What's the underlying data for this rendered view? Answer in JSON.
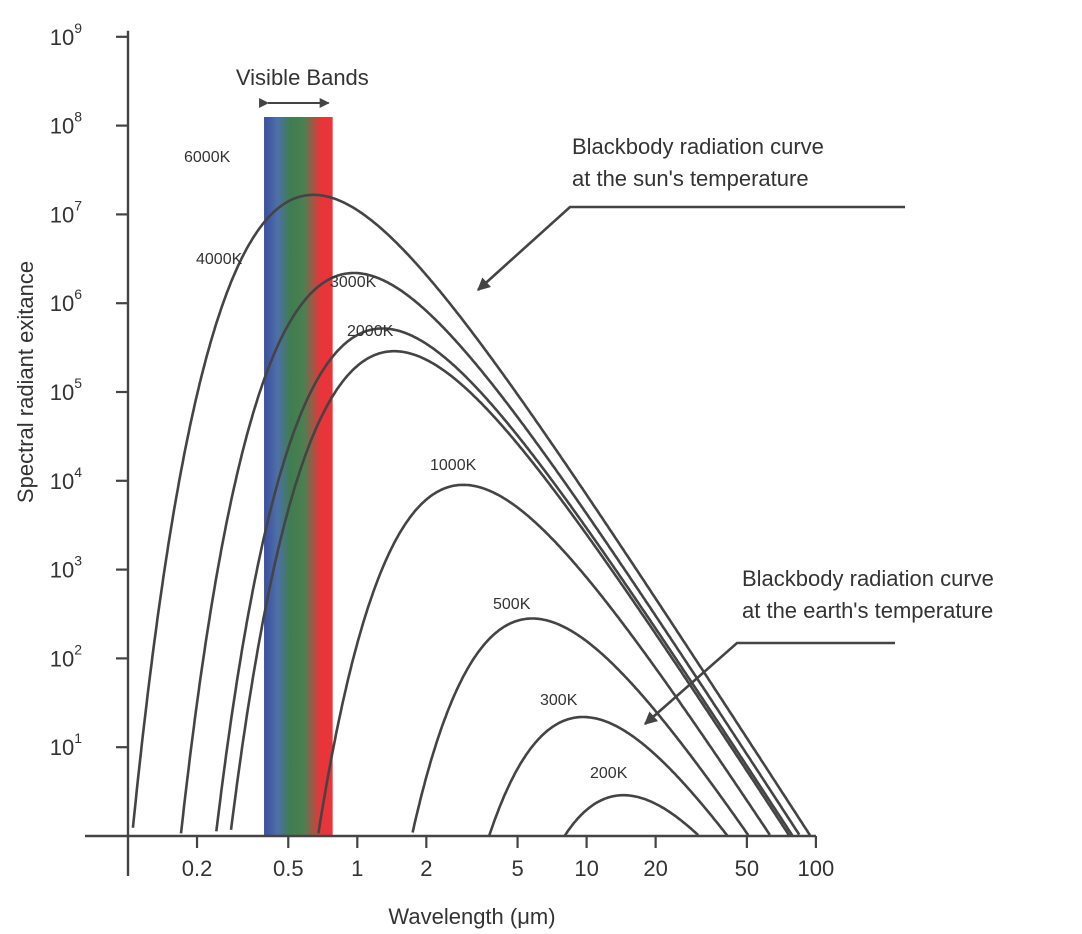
{
  "chart_data": {
    "type": "line",
    "xlabel": "Wavelength (μm)",
    "ylabel": "Spectral radiant exitance",
    "x_scale": "log",
    "y_scale": "log",
    "xlim": [
      0.1,
      100
    ],
    "ylim": [
      1,
      1000000000
    ],
    "x_ticks": [
      {
        "value": 0.2,
        "label": "0.2"
      },
      {
        "value": 0.5,
        "label": "0.5"
      },
      {
        "value": 1,
        "label": "1"
      },
      {
        "value": 2,
        "label": "2"
      },
      {
        "value": 5,
        "label": "5"
      },
      {
        "value": 10,
        "label": "10"
      },
      {
        "value": 20,
        "label": "20"
      },
      {
        "value": 50,
        "label": "50"
      },
      {
        "value": 100,
        "label": "100"
      }
    ],
    "y_ticks": [
      {
        "value": 10,
        "base": "10",
        "exp": "1"
      },
      {
        "value": 100,
        "base": "10",
        "exp": "2"
      },
      {
        "value": 1000,
        "base": "10",
        "exp": "3"
      },
      {
        "value": 10000,
        "base": "10",
        "exp": "4"
      },
      {
        "value": 100000,
        "base": "10",
        "exp": "5"
      },
      {
        "value": 1000000,
        "base": "10",
        "exp": "6"
      },
      {
        "value": 10000000,
        "base": "10",
        "exp": "7"
      },
      {
        "value": 100000000,
        "base": "10",
        "exp": "8"
      },
      {
        "value": 1000000000,
        "base": "10",
        "exp": "9"
      }
    ],
    "series": [
      {
        "name": "6000K",
        "temperature": 6000
      },
      {
        "name": "4000K",
        "temperature": 4000
      },
      {
        "name": "3000K",
        "temperature": 3000
      },
      {
        "name": "2000K",
        "temperature": 2000
      },
      {
        "name": "1000K",
        "temperature": 1000
      },
      {
        "name": "500K",
        "temperature": 500
      },
      {
        "name": "300K",
        "temperature": 300
      },
      {
        "name": "200K",
        "temperature": 200
      }
    ],
    "visible_band": {
      "label": "Visible Bands",
      "range": [
        0.4,
        0.75
      ],
      "colors": [
        "#3a4fa0",
        "#4e6fa8",
        "#3f7d4e",
        "#4d7f52",
        "#e8353a"
      ]
    },
    "annotations": [
      {
        "id": "sun",
        "lines": [
          "Blackbody radiation curve",
          "at the sun's temperature"
        ],
        "points_to": "6000K"
      },
      {
        "id": "earth",
        "lines": [
          "Blackbody radiation curve",
          "at the earth's temperature"
        ],
        "points_to": "300K"
      }
    ],
    "grid": false,
    "legend": "none"
  }
}
